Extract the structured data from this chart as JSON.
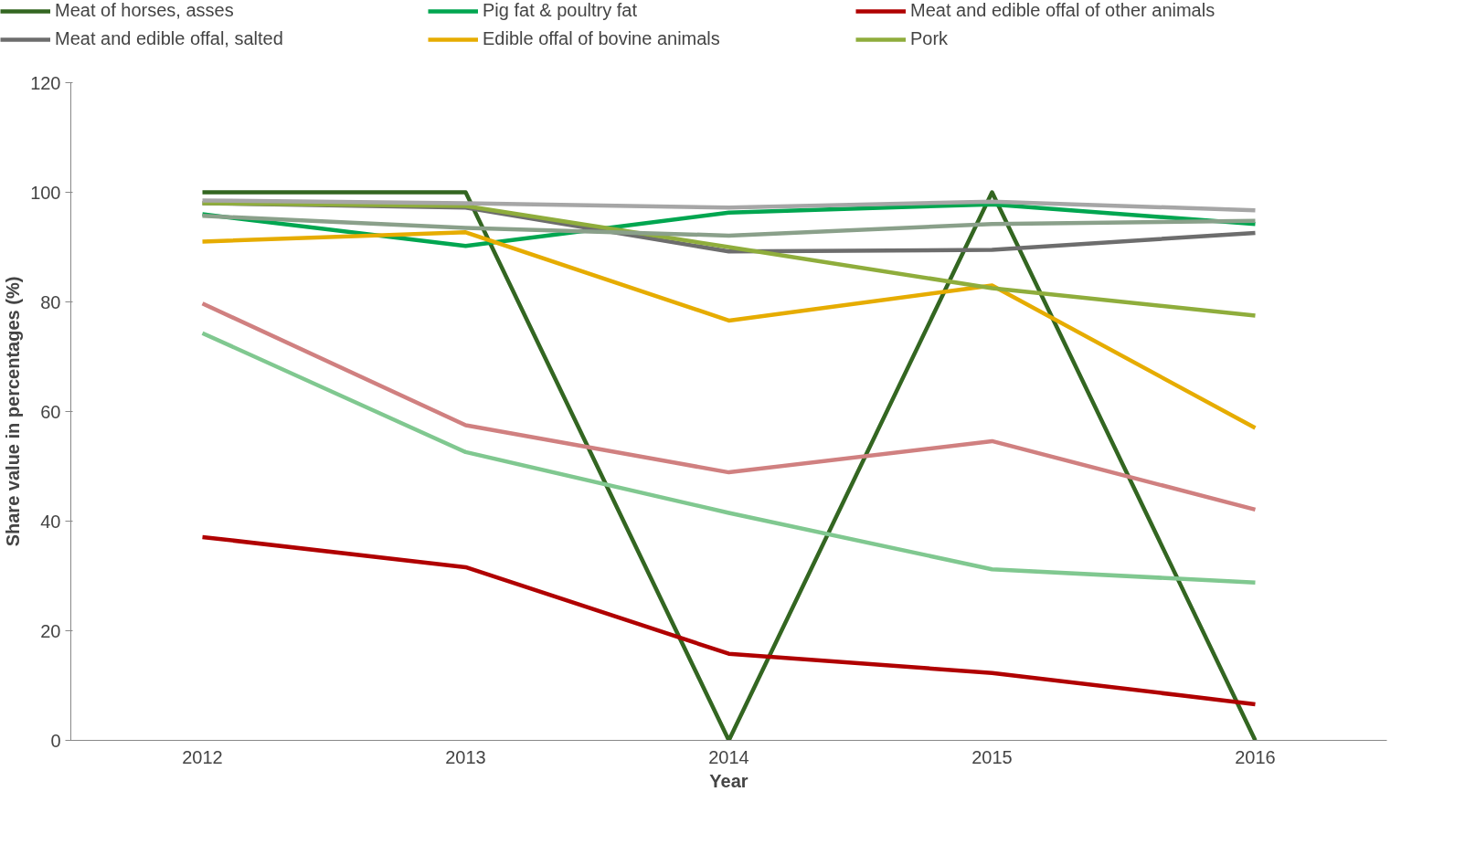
{
  "chart_data": {
    "type": "line",
    "xlabel": "Year",
    "ylabel": "Share value in percentages (%)",
    "categories": [
      "2012",
      "2013",
      "2014",
      "2015",
      "2016"
    ],
    "ylim": [
      0,
      120
    ],
    "yticks": [
      0,
      20,
      40,
      60,
      80,
      100,
      120
    ],
    "grid": false,
    "legend": "top",
    "marker": "none",
    "line_style": "solid",
    "series": [
      {
        "name": "Meat of horses, asses",
        "color": "#336621",
        "values": [
          100,
          100,
          0,
          100,
          0
        ]
      },
      {
        "name": "Pig fat & poultry fat",
        "color": "#00a650",
        "values": [
          96,
          90.2,
          96.3,
          97.8,
          94.2
        ]
      },
      {
        "name": "Meat and edible offal of other animals",
        "color": "#b00000",
        "values": [
          37.1,
          31.6,
          15.8,
          12.3,
          6.6
        ]
      },
      {
        "name": "Meat and edible offal, salted",
        "color": "#6d6d6d",
        "values": [
          98,
          97.2,
          89.2,
          89.5,
          92.6
        ]
      },
      {
        "name": "Edible offal of bovine animals",
        "color": "#e6ac00",
        "values": [
          91,
          92.7,
          76.6,
          83,
          57
        ]
      },
      {
        "name": "Pork",
        "color": "#8fad3c",
        "values": [
          98,
          97.5,
          90,
          82.5,
          77.5
        ]
      },
      {
        "color": "#d08080",
        "values": [
          79.7,
          57.5,
          48.9,
          54.6,
          42.1
        ]
      },
      {
        "color": "#80c890",
        "values": [
          74.3,
          52.6,
          41.5,
          31.2,
          28.8
        ]
      },
      {
        "color": "#a6a6a6",
        "values": [
          98.5,
          98,
          97.2,
          98.3,
          96.7
        ]
      },
      {
        "color": "#8aa08a",
        "values": [
          95.7,
          93.5,
          92.1,
          94.2,
          94.8
        ]
      }
    ]
  }
}
